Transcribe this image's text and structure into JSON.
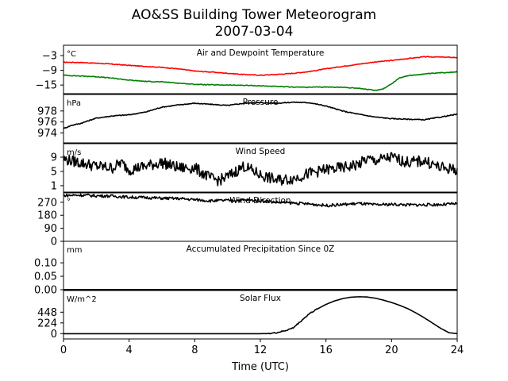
{
  "figure": {
    "title_line1": "AO&SS Building Tower Meteorogram",
    "title_line2": "2007-03-04",
    "xlabel": "Time (UTC)"
  },
  "chart_data": [
    {
      "type": "line",
      "title": "Air and Dewpoint Temperature",
      "unit_label": "°C",
      "xlim": [
        0,
        24
      ],
      "ylim": [
        -18.5,
        1.2
      ],
      "yticks": [
        -3,
        -9,
        -15
      ],
      "ytick_labels": [
        "−3",
        "−9",
        "−15"
      ],
      "series": [
        {
          "color": "#ff0000",
          "x": [
            0,
            1,
            2,
            3,
            4,
            5,
            6,
            7,
            8,
            9,
            10,
            11,
            12,
            13,
            14,
            15,
            16,
            17,
            18,
            19,
            20,
            21,
            22,
            23,
            24
          ],
          "y": [
            -5.7,
            -5.8,
            -6.1,
            -6.5,
            -7.0,
            -7.4,
            -7.8,
            -8.4,
            -9.3,
            -9.7,
            -10.2,
            -10.7,
            -11.0,
            -10.7,
            -10.2,
            -9.5,
            -8.4,
            -7.4,
            -6.5,
            -5.6,
            -5.0,
            -4.2,
            -3.5,
            -3.6,
            -3.8
          ]
        },
        {
          "color": "#008000",
          "x": [
            0,
            1,
            2,
            3,
            4,
            5,
            6,
            7,
            8,
            9,
            10,
            11,
            12,
            13,
            14,
            15,
            16,
            17,
            18,
            19,
            19.5,
            20,
            20.5,
            21,
            22,
            23,
            24
          ],
          "y": [
            -11.0,
            -11.3,
            -11.6,
            -12.2,
            -13.0,
            -13.5,
            -13.7,
            -14.2,
            -14.7,
            -14.9,
            -15.0,
            -15.1,
            -15.3,
            -15.6,
            -15.8,
            -15.9,
            -15.8,
            -15.9,
            -16.3,
            -17.2,
            -16.5,
            -14.5,
            -12.0,
            -11.2,
            -10.5,
            -10.0,
            -9.6
          ]
        }
      ]
    },
    {
      "type": "line",
      "title": "Pressure",
      "unit_label": "hPa",
      "xlim": [
        0,
        24
      ],
      "ylim": [
        972.2,
        981.0
      ],
      "yticks": [
        978,
        976,
        974
      ],
      "ytick_labels": [
        "978",
        "976",
        "974"
      ],
      "series": [
        {
          "color": "#000000",
          "x": [
            0,
            0.5,
            1,
            2,
            3,
            4,
            5,
            6,
            7,
            8,
            9,
            10,
            11,
            12,
            13,
            14,
            15,
            16,
            17,
            18,
            19,
            20,
            21,
            22,
            23,
            24
          ],
          "y": [
            974.8,
            975.4,
            975.7,
            976.7,
            977.1,
            977.3,
            977.8,
            978.7,
            979.1,
            979.4,
            979.2,
            979.0,
            979.4,
            979.5,
            979.4,
            979.6,
            979.5,
            978.9,
            978.0,
            977.4,
            976.9,
            976.6,
            976.5,
            976.4,
            976.9,
            977.4
          ]
        }
      ]
    },
    {
      "type": "line",
      "title": "Wind Speed",
      "unit_label": "m/s",
      "xlim": [
        0,
        24
      ],
      "ylim": [
        -0.8,
        12.8
      ],
      "yticks": [
        9,
        5,
        1
      ],
      "ytick_labels": [
        "9",
        "5",
        "1"
      ],
      "series": [
        {
          "color": "#000000",
          "x": [
            0,
            1,
            2,
            3,
            3.5,
            4,
            5,
            6,
            7,
            8,
            9,
            9.5,
            10,
            10.5,
            11,
            12,
            13,
            14,
            15,
            16,
            17,
            18,
            18.5,
            19,
            20,
            21,
            22,
            23,
            24
          ],
          "y": [
            8.5,
            7.5,
            6.5,
            6.0,
            7.5,
            5.5,
            6.5,
            7.5,
            6.0,
            6.0,
            3.0,
            2.5,
            3.5,
            5.0,
            6.5,
            4.0,
            2.5,
            3.0,
            4.5,
            5.5,
            6.0,
            7.0,
            8.5,
            8.0,
            9.0,
            7.5,
            8.0,
            6.0,
            5.5
          ]
        }
      ]
    },
    {
      "type": "line",
      "title": "Wind Direction",
      "unit_label": "°",
      "xlim": [
        0,
        24
      ],
      "ylim": [
        0,
        335
      ],
      "yticks": [
        270,
        180,
        90,
        0
      ],
      "ytick_labels": [
        "270",
        "180",
        "90",
        "0"
      ],
      "series": [
        {
          "color": "#000000",
          "x": [
            0,
            1,
            2,
            3,
            4,
            5,
            6,
            7,
            8,
            9,
            10,
            11,
            12,
            13,
            14,
            15,
            16,
            17,
            18,
            19,
            20,
            21,
            22,
            23,
            24
          ],
          "y": [
            317,
            320,
            315,
            313,
            305,
            303,
            298,
            296,
            288,
            280,
            283,
            285,
            282,
            270,
            265,
            258,
            248,
            254,
            262,
            252,
            256,
            252,
            252,
            254,
            260
          ]
        }
      ]
    },
    {
      "type": "line",
      "title": "Accumulated Precipitation Since 0Z",
      "unit_label": "mm",
      "xlim": [
        0,
        24
      ],
      "ylim": [
        0,
        0.18
      ],
      "yticks": [
        0.1,
        0.05,
        0.0
      ],
      "ytick_labels": [
        "0.10",
        "0.05",
        "0.00"
      ],
      "series": [
        {
          "color": "#000000",
          "x": [
            0,
            24
          ],
          "y": [
            0,
            0
          ]
        }
      ]
    },
    {
      "type": "line",
      "title": "Solar Flux",
      "unit_label": "W/m^2",
      "xlim": [
        0,
        24
      ],
      "ylim": [
        -110,
        900
      ],
      "yticks": [
        448,
        224,
        0
      ],
      "ytick_labels": [
        "448",
        "224",
        "0"
      ],
      "series": [
        {
          "color": "#000000",
          "x": [
            0,
            6,
            10,
            12,
            12.5,
            13,
            13.5,
            14,
            14.5,
            15,
            15.5,
            16,
            16.5,
            17,
            17.5,
            18,
            18.5,
            19,
            19.5,
            20,
            20.5,
            21,
            21.5,
            22,
            22.5,
            23,
            23.5,
            24
          ],
          "y": [
            0,
            0,
            0,
            0,
            2,
            20,
            60,
            120,
            270,
            420,
            520,
            610,
            680,
            730,
            760,
            770,
            765,
            740,
            700,
            650,
            590,
            520,
            430,
            330,
            220,
            110,
            20,
            0
          ]
        }
      ]
    }
  ]
}
